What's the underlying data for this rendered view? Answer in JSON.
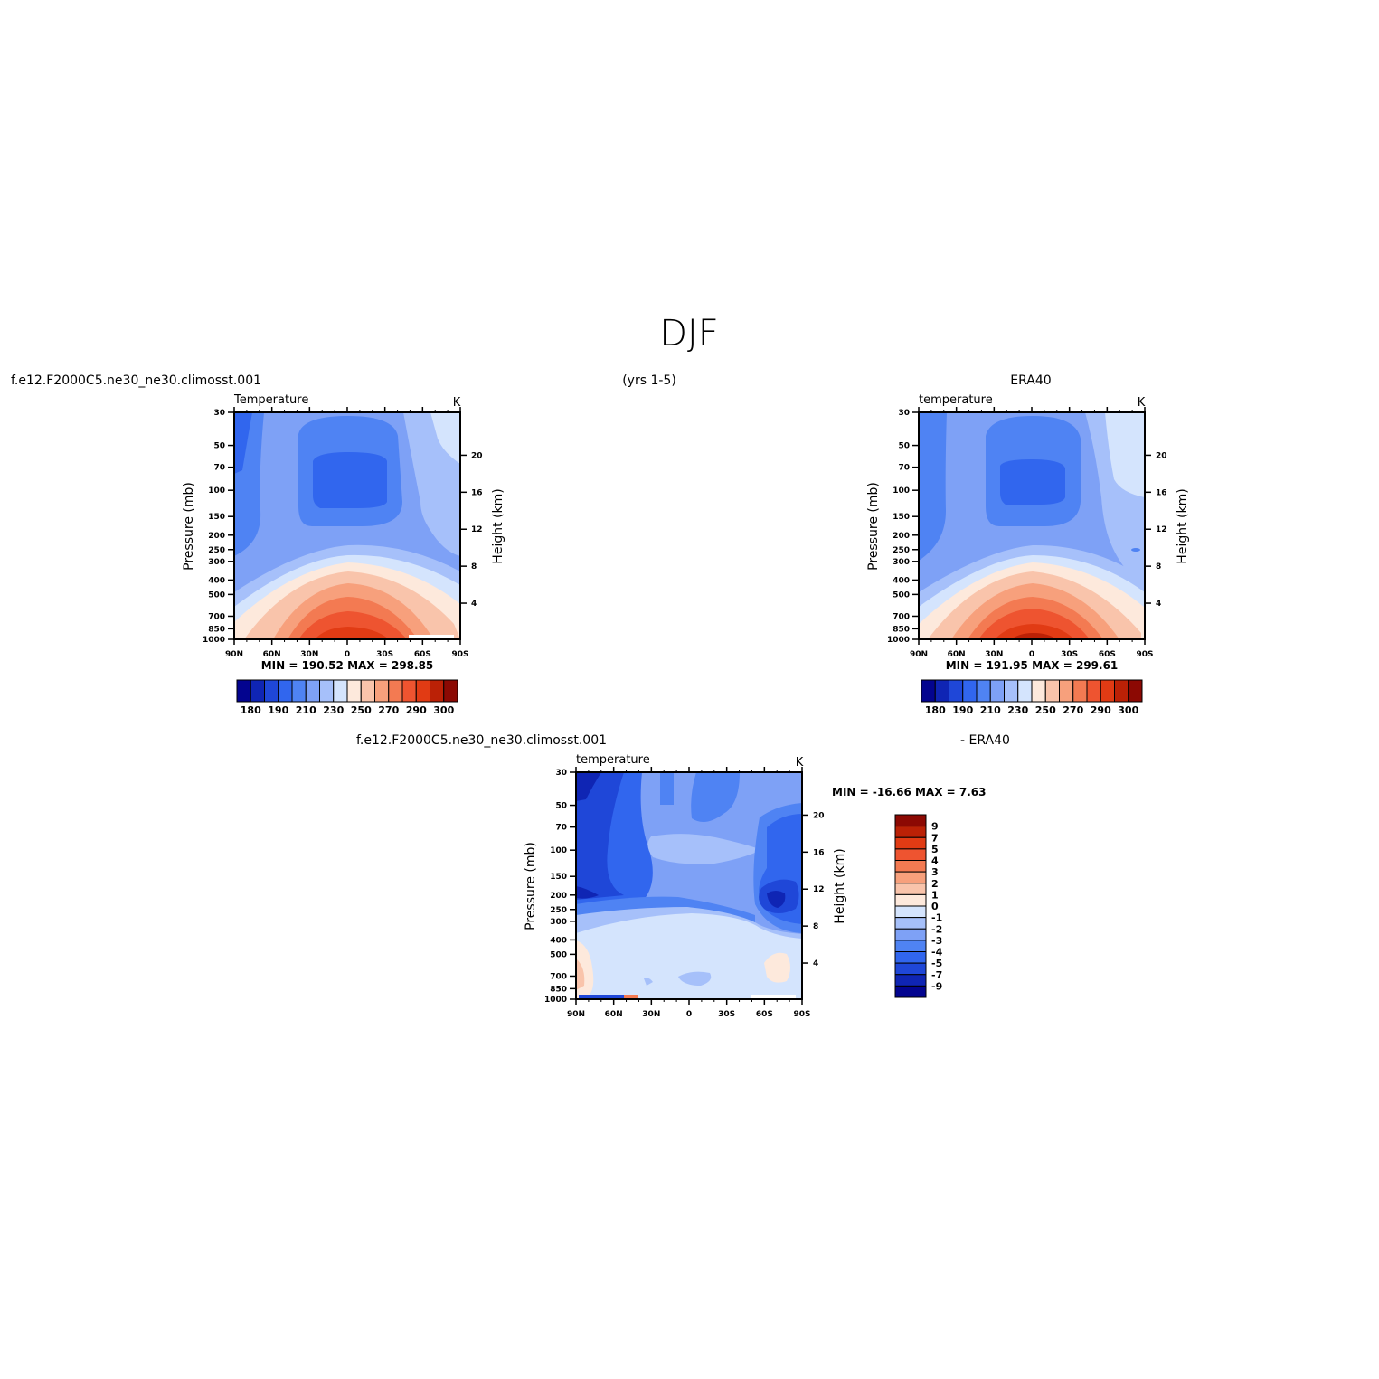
{
  "figure": {
    "title": "DJF",
    "case_name": "f.e12.F2000C5.ne30_ne30.climosst.001",
    "years": "(yrs 1-5)",
    "reference": "ERA40",
    "diff_reference": "- ERA40"
  },
  "chart_data": [
    {
      "id": "model",
      "type": "heatmap",
      "title": "Temperature",
      "units": "K",
      "xlabel": "",
      "ylabel": "Pressure (mb)",
      "ylabel_right": "Height (km)",
      "x_ticks": [
        "90N",
        "60N",
        "30N",
        "0",
        "30S",
        "60S",
        "90S"
      ],
      "y_ticks": [
        30,
        50,
        70,
        100,
        150,
        200,
        250,
        300,
        400,
        500,
        700,
        850,
        1000
      ],
      "y_right_ticks": [
        20,
        16,
        12,
        8,
        4
      ],
      "ylim": [
        1000,
        30
      ],
      "log_y": true,
      "stats": {
        "min": "190.52",
        "max": "298.85"
      },
      "colorbar": {
        "orientation": "horizontal",
        "colors": [
          "#03048f",
          "#0f25b4",
          "#1f47d8",
          "#3166ee",
          "#4f83f3",
          "#7ea1f6",
          "#a6c0fa",
          "#d4e4fd",
          "#fde9dc",
          "#f9c4ab",
          "#f7a07c",
          "#f37a52",
          "#ee5430",
          "#e13b14",
          "#bb2106",
          "#8c0903"
        ],
        "labels": [
          "180",
          "190",
          "210",
          "230",
          "250",
          "270",
          "290",
          "300"
        ]
      }
    },
    {
      "id": "obs",
      "type": "heatmap",
      "title": "temperature",
      "units": "K",
      "xlabel": "",
      "ylabel": "Pressure (mb)",
      "ylabel_right": "Height (km)",
      "x_ticks": [
        "90N",
        "60N",
        "30N",
        "0",
        "30S",
        "60S",
        "90S"
      ],
      "y_ticks": [
        30,
        50,
        70,
        100,
        150,
        200,
        250,
        300,
        400,
        500,
        700,
        850,
        1000
      ],
      "y_right_ticks": [
        20,
        16,
        12,
        8,
        4
      ],
      "ylim": [
        1000,
        30
      ],
      "log_y": true,
      "stats": {
        "min": "191.95",
        "max": "299.61"
      },
      "colorbar": {
        "orientation": "horizontal",
        "colors": [
          "#03048f",
          "#0f25b4",
          "#1f47d8",
          "#3166ee",
          "#4f83f3",
          "#7ea1f6",
          "#a6c0fa",
          "#d4e4fd",
          "#fde9dc",
          "#f9c4ab",
          "#f7a07c",
          "#f37a52",
          "#ee5430",
          "#e13b14",
          "#bb2106",
          "#8c0903"
        ],
        "labels": [
          "180",
          "190",
          "210",
          "230",
          "250",
          "270",
          "290",
          "300"
        ]
      }
    },
    {
      "id": "diff",
      "type": "heatmap",
      "title": "temperature",
      "units": "K",
      "xlabel": "",
      "ylabel": "Pressure (mb)",
      "ylabel_right": "Height (km)",
      "x_ticks": [
        "90N",
        "60N",
        "30N",
        "0",
        "30S",
        "60S",
        "90S"
      ],
      "y_ticks": [
        30,
        50,
        70,
        100,
        150,
        200,
        250,
        300,
        400,
        500,
        700,
        850,
        1000
      ],
      "y_right_ticks": [
        20,
        16,
        12,
        8,
        4
      ],
      "ylim": [
        1000,
        30
      ],
      "log_y": true,
      "stats": {
        "min": "-16.66",
        "max": "7.63"
      },
      "colorbar": {
        "orientation": "vertical",
        "colors": [
          "#8c0903",
          "#bb2106",
          "#e13b14",
          "#ee5430",
          "#f37a52",
          "#f7a07c",
          "#f9c4ab",
          "#fde9dc",
          "#d4e4fd",
          "#a6c0fa",
          "#7ea1f6",
          "#4f83f3",
          "#3166ee",
          "#1f47d8",
          "#0f25b4",
          "#03048f"
        ],
        "labels": [
          "9",
          "7",
          "5",
          "4",
          "3",
          "2",
          "1",
          "0",
          "-1",
          "-2",
          "-3",
          "-4",
          "-5",
          "-7",
          "-9"
        ]
      }
    }
  ]
}
